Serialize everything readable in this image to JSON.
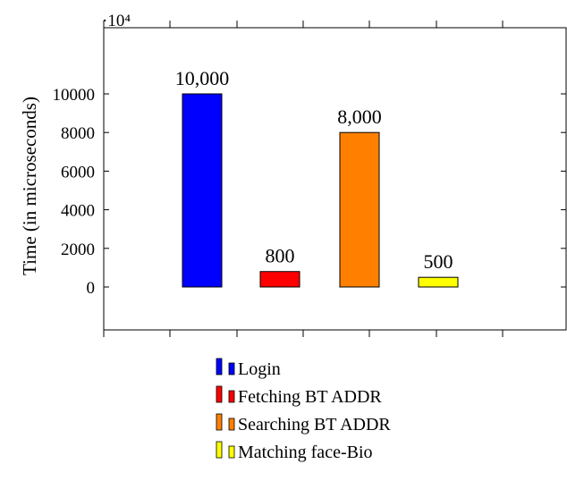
{
  "chart_data": {
    "type": "bar",
    "title": "",
    "xlabel": "",
    "ylabel": "Time (in microseconds)",
    "scale_note": "·10⁴",
    "yticks": [
      0,
      2000,
      4000,
      6000,
      8000,
      10000
    ],
    "ylim": [
      -2300,
      13500
    ],
    "grid": false,
    "legend_position": "bottom",
    "series": [
      {
        "name": "Login",
        "value": 10000,
        "label": "10,000",
        "color": "#0000ff"
      },
      {
        "name": "Fetching BT ADDR",
        "value": 800,
        "label": "800",
        "color": "#ff0000"
      },
      {
        "name": "Searching BT ADDR",
        "value": 8000,
        "label": "8,000",
        "color": "#ff8000"
      },
      {
        "name": "Matching face-Bio",
        "value": 500,
        "label": "500",
        "color": "#ffff00"
      }
    ]
  }
}
